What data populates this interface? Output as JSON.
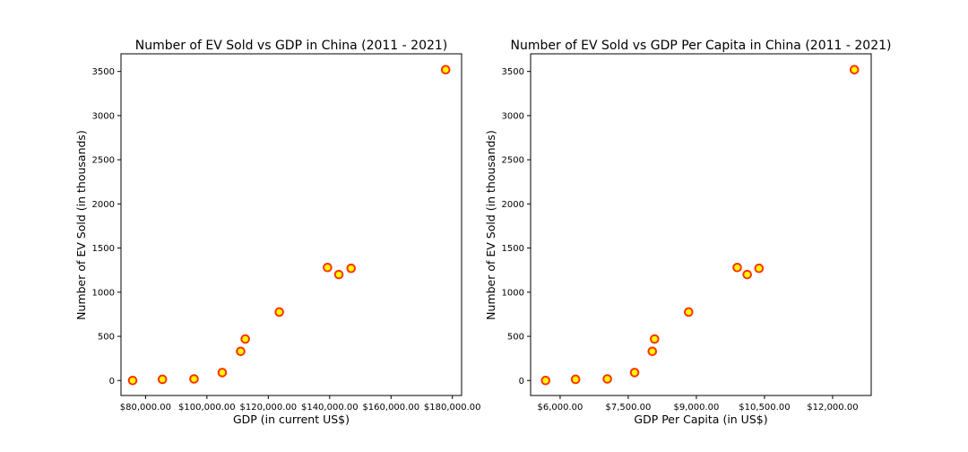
{
  "chart_data": [
    {
      "type": "scatter",
      "title": "Number of EV Sold vs GDP in China (2011 - 2021)",
      "xlabel": "GDP (in current US$)",
      "ylabel": "Number of EV Sold (in thousands)",
      "xlim": [
        72000,
        183000
      ],
      "ylim": [
        -170,
        3700
      ],
      "xticks": [
        80000,
        100000,
        120000,
        140000,
        160000,
        180000
      ],
      "xtick_labels": [
        "$80,000.00",
        "$100,000.00",
        "$120,000.00",
        "$140,000.00",
        "$160,000.00",
        "$180,000.00"
      ],
      "yticks": [
        0,
        500,
        1000,
        1500,
        2000,
        2500,
        3000,
        3500
      ],
      "ytick_labels": [
        "0",
        "500",
        "1000",
        "1500",
        "2000",
        "2500",
        "3000",
        "3500"
      ],
      "marker": {
        "fill": "#ffff00",
        "edge": "#ff3300"
      },
      "x": [
        75800,
        85500,
        95800,
        105000,
        111000,
        112500,
        123600,
        139300,
        143000,
        147000,
        177800
      ],
      "y": [
        0,
        13,
        18,
        90,
        330,
        470,
        775,
        1280,
        1200,
        1270,
        3520
      ]
    },
    {
      "type": "scatter",
      "title": "Number of EV Sold vs GDP Per Capita in China (2011 - 2021)",
      "xlabel": "GDP Per Capita (in US$)",
      "ylabel": "Number of EV Sold (in thousands)",
      "xlim": [
        5350,
        12850
      ],
      "ylim": [
        -170,
        3700
      ],
      "xticks": [
        6000,
        7500,
        9000,
        10500,
        12000
      ],
      "xtick_labels": [
        "$6,000.00",
        "$7,500.00",
        "$9,000.00",
        "$10,500.00",
        "$12,000.00"
      ],
      "yticks": [
        0,
        500,
        1000,
        1500,
        2000,
        2500,
        3000,
        3500
      ],
      "ytick_labels": [
        "0",
        "500",
        "1000",
        "1500",
        "2000",
        "2500",
        "3000",
        "3500"
      ],
      "marker": {
        "fill": "#ffff00",
        "edge": "#ff3300"
      },
      "x": [
        5680,
        6340,
        7040,
        7640,
        8030,
        8080,
        8830,
        9900,
        10120,
        10380,
        12480
      ],
      "y": [
        0,
        13,
        18,
        90,
        330,
        470,
        775,
        1280,
        1200,
        1270,
        3520
      ]
    }
  ]
}
